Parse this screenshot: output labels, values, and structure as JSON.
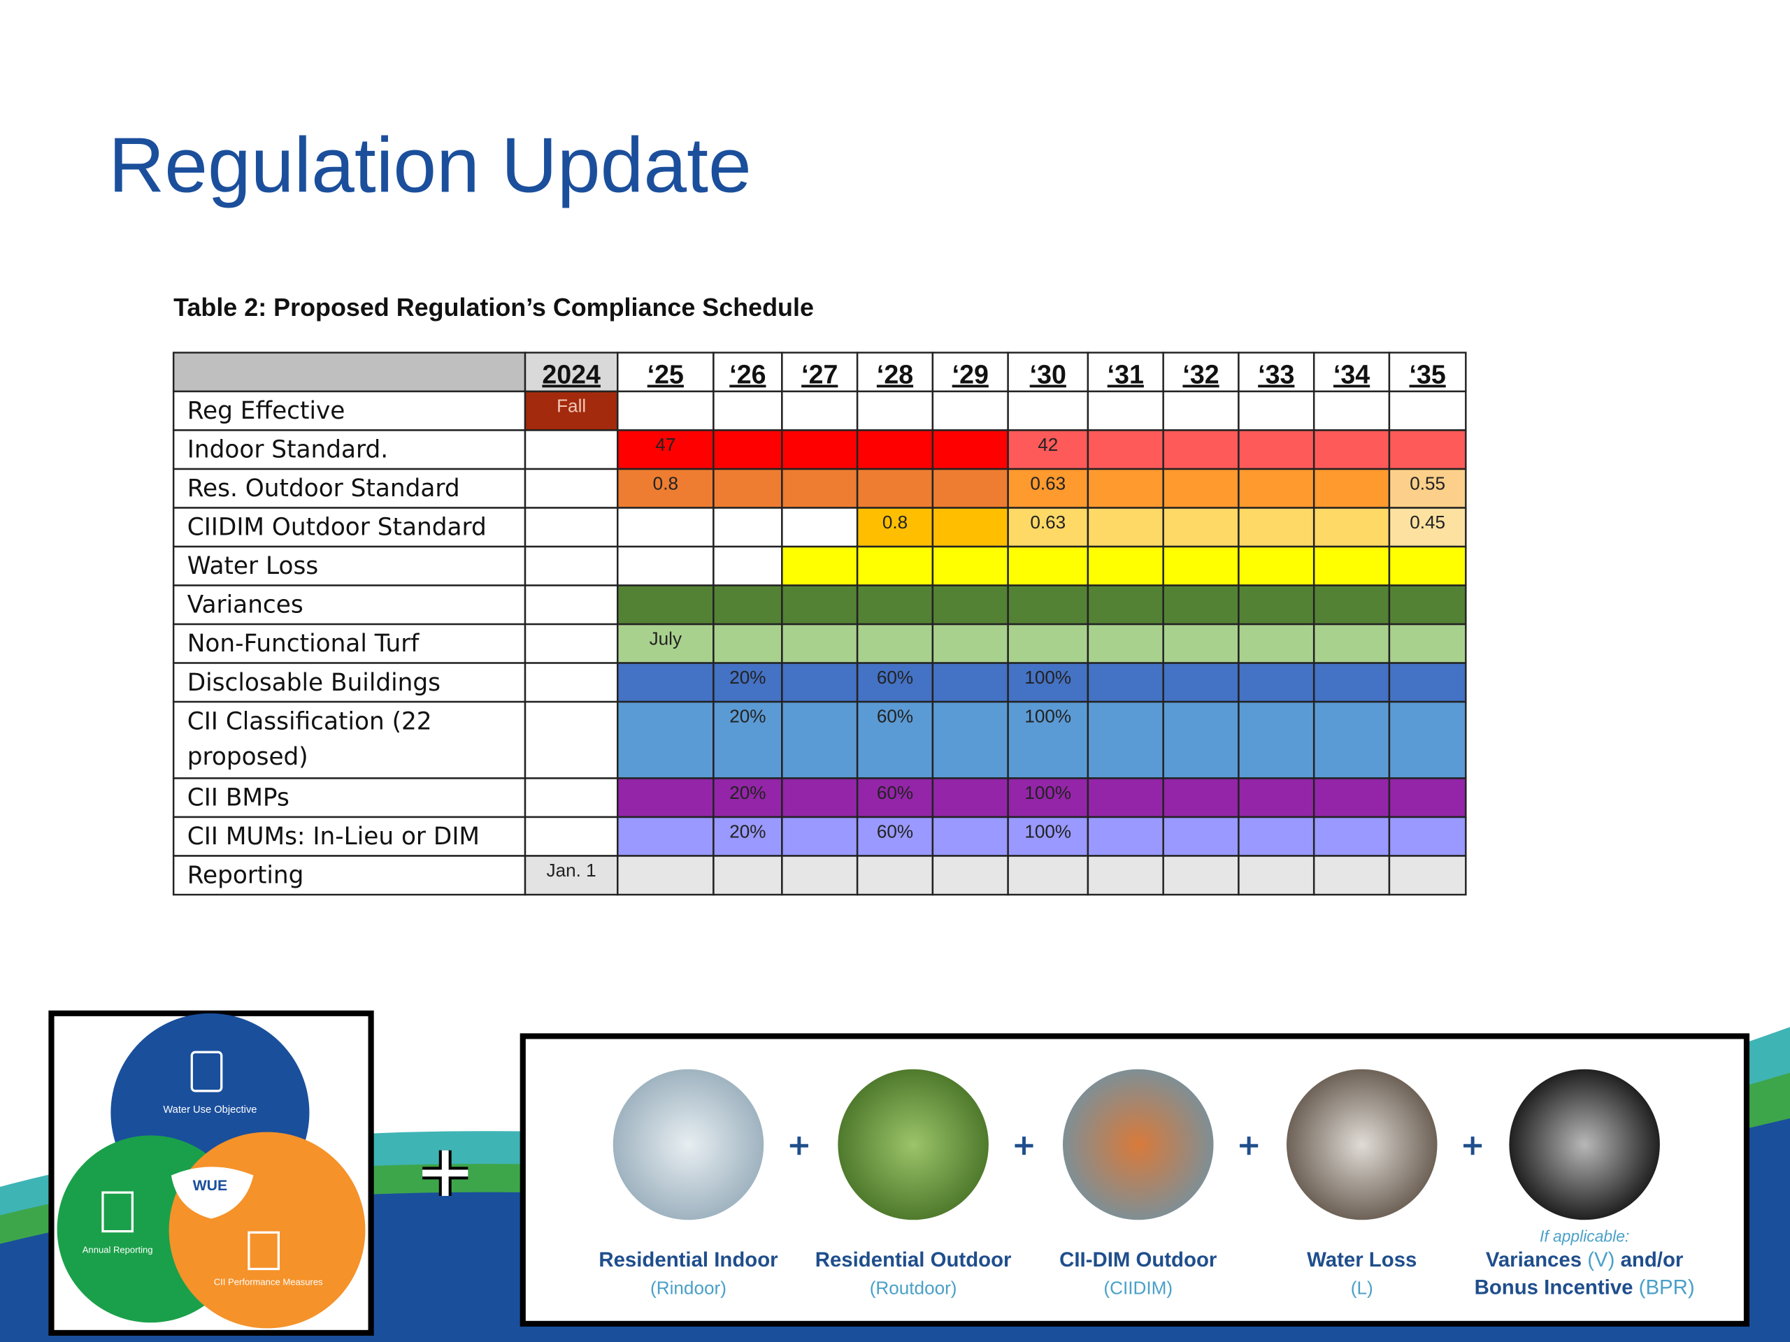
{
  "header": {
    "title": "Regulation Update"
  },
  "table": {
    "caption": "Table 2: Proposed Regulation’s Compliance Schedule",
    "columns": [
      "2024",
      "‘25",
      "‘26",
      "‘27",
      "‘28",
      "‘29",
      "‘30",
      "‘31",
      "‘32",
      "‘33",
      "‘34",
      "‘35"
    ],
    "rows": [
      {
        "label": "Reg Effective",
        "cells": [
          "Fall",
          null,
          null,
          null,
          null,
          null,
          null,
          null,
          null,
          null,
          null,
          null
        ]
      },
      {
        "label": "Indoor Standard.",
        "cells": [
          null,
          "47",
          null,
          null,
          null,
          null,
          "42",
          null,
          null,
          null,
          null,
          null
        ]
      },
      {
        "label": "Res. Outdoor Standard",
        "cells": [
          null,
          "0.8",
          null,
          null,
          null,
          null,
          "0.63",
          null,
          null,
          null,
          null,
          "0.55"
        ]
      },
      {
        "label": "CIIDIM Outdoor Standard",
        "cells": [
          null,
          null,
          null,
          null,
          "0.8",
          null,
          "0.63",
          null,
          null,
          null,
          null,
          "0.45"
        ]
      },
      {
        "label": "Water Loss",
        "cells": [
          null,
          null,
          null,
          null,
          null,
          null,
          null,
          null,
          null,
          null,
          null,
          null
        ]
      },
      {
        "label": "Variances",
        "cells": [
          null,
          null,
          null,
          null,
          null,
          null,
          null,
          null,
          null,
          null,
          null,
          null
        ]
      },
      {
        "label": "Non-Functional Turf",
        "cells": [
          null,
          "July",
          null,
          null,
          null,
          null,
          null,
          null,
          null,
          null,
          null,
          null
        ]
      },
      {
        "label": "Disclosable Buildings",
        "cells": [
          null,
          null,
          "20%",
          null,
          "60%",
          null,
          "100%",
          null,
          null,
          null,
          null,
          null
        ]
      },
      {
        "label": "CII Classification (22 proposed)",
        "cells": [
          null,
          null,
          "20%",
          null,
          "60%",
          null,
          "100%",
          null,
          null,
          null,
          null,
          null
        ]
      },
      {
        "label": "CII BMPs",
        "cells": [
          null,
          null,
          "20%",
          null,
          "60%",
          null,
          "100%",
          null,
          null,
          null,
          null,
          null
        ]
      },
      {
        "label": "CII MUMs: In-Lieu or DIM",
        "cells": [
          null,
          null,
          "20%",
          null,
          "60%",
          null,
          "100%",
          null,
          null,
          null,
          null,
          null
        ]
      },
      {
        "label": "Reporting",
        "cells": [
          "Jan. 1",
          null,
          null,
          null,
          null,
          null,
          null,
          null,
          null,
          null,
          null,
          null
        ]
      }
    ]
  },
  "venn": {
    "labels": [
      "Water Use Objective",
      "WUE",
      "Annual Reporting",
      "CII Performance Measures"
    ]
  },
  "components": [
    {
      "name": "Residential Indoor",
      "abbr": "(Rindoor)"
    },
    {
      "name": "Residential Outdoor",
      "abbr": "(Routdoor)"
    },
    {
      "name": "CII-DIM Outdoor",
      "abbr": "(CIIDIM)"
    },
    {
      "name": "Water Loss",
      "abbr": "(L)"
    },
    {
      "note": "If applicable:",
      "name": "Variances",
      "abbr": "(V)",
      "joiner": "and/or",
      "name2": "Bonus Incentive",
      "abbr2": "(BPR)"
    }
  ]
}
